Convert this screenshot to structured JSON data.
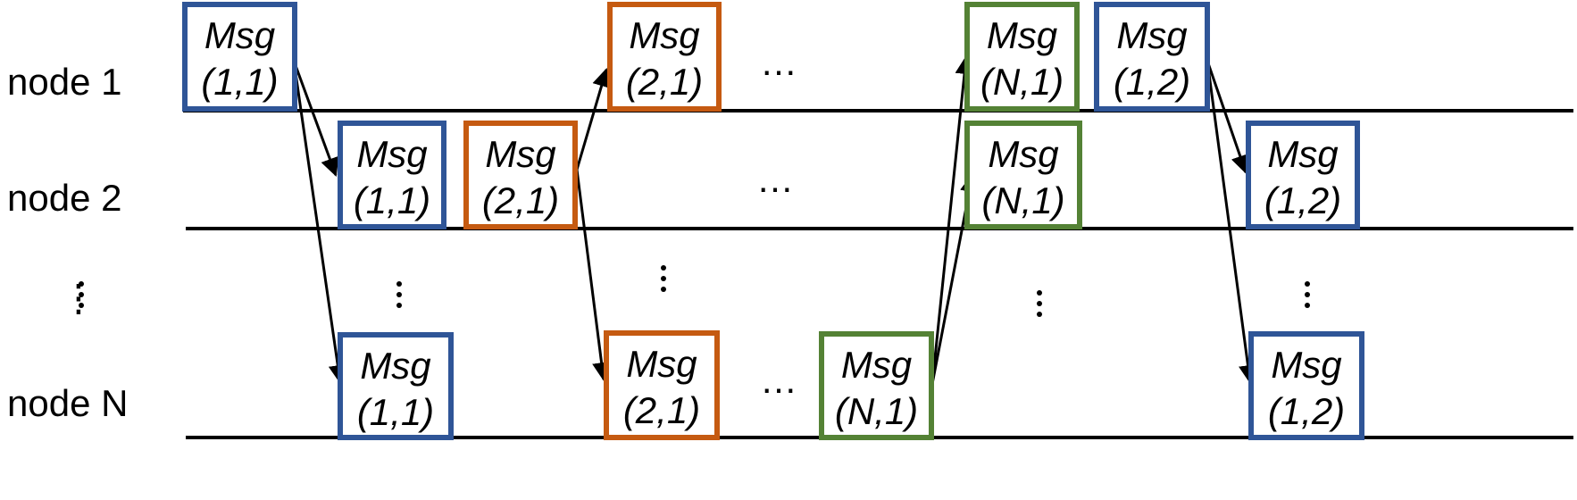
{
  "colors": {
    "blue": "#2f5597",
    "orange": "#c55a11",
    "green": "#548235",
    "line": "#000000"
  },
  "nodes": [
    {
      "id": "node1",
      "label": "node 1"
    },
    {
      "id": "node2",
      "label": "node 2"
    },
    {
      "id": "node_dots",
      "label": "⋮"
    },
    {
      "id": "nodeN",
      "label": "node N"
    }
  ],
  "messages": [
    {
      "id": "m1",
      "row": "node1",
      "color": "blue",
      "line1": "Msg",
      "line2": "(1,1)"
    },
    {
      "id": "m2",
      "row": "node2",
      "color": "blue",
      "line1": "Msg",
      "line2": "(1,1)"
    },
    {
      "id": "m3",
      "row": "nodeN",
      "color": "blue",
      "line1": "Msg",
      "line2": "(1,1)"
    },
    {
      "id": "m4",
      "row": "node2",
      "color": "orange",
      "line1": "Msg",
      "line2": "(2,1)"
    },
    {
      "id": "m5",
      "row": "node1",
      "color": "orange",
      "line1": "Msg",
      "line2": "(2,1)"
    },
    {
      "id": "m6",
      "row": "nodeN",
      "color": "orange",
      "line1": "Msg",
      "line2": "(2,1)"
    },
    {
      "id": "m7",
      "row": "nodeN",
      "color": "green",
      "line1": "Msg",
      "line2": "(N,1)"
    },
    {
      "id": "m8",
      "row": "node1",
      "color": "green",
      "line1": "Msg",
      "line2": "(N,1)"
    },
    {
      "id": "m9",
      "row": "node2",
      "color": "green",
      "line1": "Msg",
      "line2": "(N,1)"
    },
    {
      "id": "m10",
      "row": "node1",
      "color": "blue",
      "line1": "Msg",
      "line2": "(1,2)"
    },
    {
      "id": "m11",
      "row": "node2",
      "color": "blue",
      "line1": "Msg",
      "line2": "(1,2)"
    },
    {
      "id": "m12",
      "row": "nodeN",
      "color": "blue",
      "line1": "Msg",
      "line2": "(1,2)"
    }
  ],
  "ellipses": [
    {
      "id": "e1",
      "text": "…"
    },
    {
      "id": "e2",
      "text": "…"
    },
    {
      "id": "e3",
      "text": "…"
    }
  ],
  "edges": [
    {
      "from": "m1",
      "to": "m2"
    },
    {
      "from": "m1",
      "to": "m3"
    },
    {
      "from": "m4",
      "to": "m5"
    },
    {
      "from": "m4",
      "to": "m6"
    },
    {
      "from": "m7",
      "to": "m8"
    },
    {
      "from": "m7",
      "to": "m9"
    },
    {
      "from": "m10",
      "to": "m11"
    },
    {
      "from": "m10",
      "to": "m12"
    }
  ]
}
